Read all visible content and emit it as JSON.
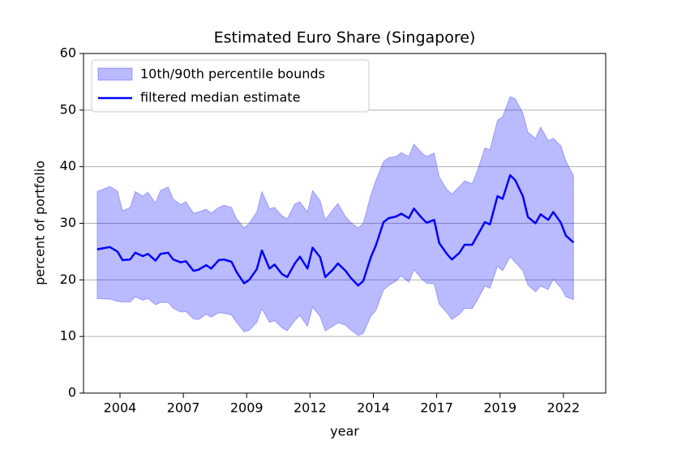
{
  "chart_data": {
    "type": "line",
    "title": "Estimated Euro Share (Singapore)",
    "xlabel": "year",
    "ylabel": "percent of portfolio",
    "x": [
      2003.1,
      2003.6,
      2003.9,
      2004.1,
      2004.4,
      2004.6,
      2004.9,
      2005.1,
      2005.4,
      2005.6,
      2005.9,
      2006.1,
      2006.4,
      2006.6,
      2006.9,
      2007.1,
      2007.4,
      2007.6,
      2007.9,
      2008.1,
      2008.4,
      2008.6,
      2008.9,
      2009.1,
      2009.4,
      2009.6,
      2009.9,
      2010.1,
      2010.4,
      2010.6,
      2010.9,
      2011.1,
      2011.4,
      2011.6,
      2011.9,
      2012.1,
      2012.4,
      2012.6,
      2012.9,
      2013.1,
      2013.4,
      2013.6,
      2013.9,
      2014.1,
      2014.4,
      2014.6,
      2014.9,
      2015.1,
      2015.4,
      2015.6,
      2015.9,
      2016.1,
      2016.4,
      2016.6,
      2016.9,
      2017.1,
      2017.4,
      2017.6,
      2017.9,
      2018.1,
      2018.4,
      2018.6,
      2018.9,
      2019.1,
      2019.4,
      2019.6,
      2019.9,
      2020.1,
      2020.4,
      2020.6,
      2020.9,
      2021.1,
      2021.4,
      2021.6,
      2021.9
    ],
    "band": {
      "name": "10th/90th percentile bounds",
      "color": "#0000ff",
      "lower": [
        16.7,
        16.6,
        16.2,
        16.1,
        16.1,
        17.0,
        16.4,
        16.7,
        15.6,
        16.0,
        16.0,
        15.0,
        14.3,
        14.4,
        13.1,
        13.0,
        13.9,
        13.4,
        14.2,
        14.1,
        13.8,
        12.5,
        10.8,
        11.1,
        12.5,
        14.9,
        12.5,
        12.8,
        11.5,
        11.0,
        12.8,
        13.7,
        11.8,
        15.2,
        13.5,
        11.0,
        11.8,
        12.4,
        12.0,
        11.2,
        10.2,
        10.5,
        13.6,
        14.6,
        18.2,
        19.0,
        19.8,
        20.7,
        19.6,
        21.8,
        20.2,
        19.4,
        19.3,
        15.7,
        14.2,
        13.0,
        13.9,
        15.0,
        14.9,
        16.4,
        18.9,
        18.5,
        22.4,
        21.6,
        24.1,
        23.1,
        21.6,
        19.1,
        17.9,
        18.9,
        18.3,
        20.1,
        18.6,
        17.0,
        16.5
      ],
      "upper": [
        35.6,
        36.5,
        35.7,
        32.2,
        32.8,
        35.6,
        34.8,
        35.5,
        33.6,
        35.8,
        36.4,
        34.3,
        33.3,
        33.8,
        31.8,
        32.0,
        32.5,
        31.8,
        32.8,
        33.2,
        32.8,
        30.8,
        29.2,
        30.0,
        32.0,
        35.6,
        32.6,
        32.8,
        31.3,
        30.8,
        33.4,
        33.8,
        32.0,
        35.8,
        34.0,
        30.6,
        32.4,
        33.5,
        31.2,
        30.2,
        29.2,
        30.0,
        35.0,
        37.6,
        40.9,
        41.6,
        41.8,
        42.5,
        41.8,
        44.0,
        42.5,
        41.8,
        42.4,
        38.2,
        36.0,
        35.2,
        36.5,
        37.5,
        37.0,
        39.2,
        43.3,
        43.0,
        48.2,
        48.8,
        52.4,
        52.0,
        49.5,
        46.1,
        45.0,
        47.0,
        44.6,
        45.0,
        43.7,
        41.0,
        38.4
      ]
    },
    "series": [
      {
        "name": "filtered median estimate",
        "color": "#0000ff",
        "values": [
          25.4,
          25.8,
          25.0,
          23.5,
          23.6,
          24.8,
          24.2,
          24.6,
          23.4,
          24.6,
          24.8,
          23.6,
          23.1,
          23.3,
          21.6,
          21.8,
          22.6,
          22.0,
          23.5,
          23.6,
          23.2,
          21.4,
          19.4,
          20.0,
          21.9,
          25.2,
          22.0,
          22.7,
          21.0,
          20.5,
          22.9,
          24.1,
          22.0,
          25.7,
          24.0,
          20.5,
          21.8,
          22.9,
          21.6,
          20.4,
          19.0,
          19.8,
          24.0,
          26.1,
          30.2,
          30.9,
          31.2,
          31.7,
          30.9,
          32.6,
          31.0,
          30.1,
          30.6,
          26.5,
          24.6,
          23.6,
          24.8,
          26.2,
          26.2,
          27.8,
          30.2,
          29.8,
          34.8,
          34.3,
          38.5,
          37.6,
          34.8,
          31.1,
          30.0,
          31.6,
          30.6,
          32.0,
          30.1,
          27.8,
          26.6
        ]
      }
    ],
    "xlim": [
      2002.56,
      2023.17
    ],
    "xticks": [
      2004,
      {
        "value": 2006.5,
        "label": "2007"
      },
      2009,
      {
        "value": 2011.5,
        "label": "2012"
      },
      2014,
      {
        "value": 2016.5,
        "label": "2017"
      },
      2019,
      {
        "value": 2021.5,
        "label": "2022"
      }
    ],
    "ylim": [
      0,
      60
    ],
    "yticks": [
      0,
      10,
      20,
      30,
      40,
      50,
      60
    ],
    "grid": "y",
    "legend": "upper left"
  }
}
